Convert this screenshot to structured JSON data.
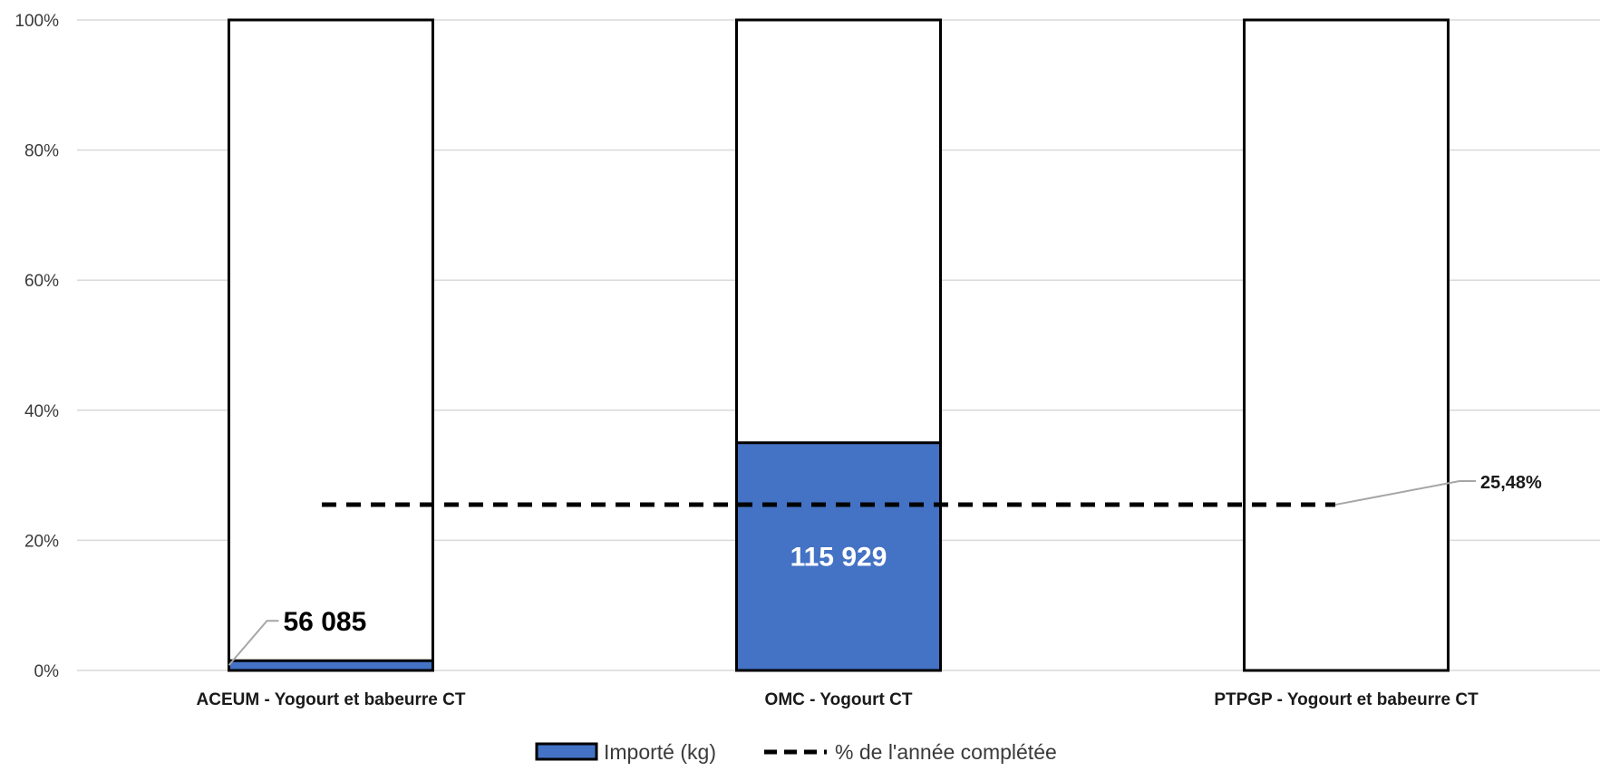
{
  "chart_data": {
    "type": "bar",
    "stacked_percent": true,
    "categories": [
      "ACEUM - Yogourt et babeurre  CT",
      "OMC - Yogourt  CT",
      "PTPGP - Yogourt et babeurre  CT"
    ],
    "series": [
      {
        "name": "Importé (kg)",
        "type": "bar",
        "color": "#4472C4",
        "values_percent": [
          1.5,
          35,
          0
        ],
        "data_labels": [
          "56 085",
          "115 929",
          ""
        ]
      },
      {
        "name": "% de l'année complétée",
        "type": "line",
        "style": "dashed",
        "color": "#000000",
        "value_percent": 25.48,
        "data_label": "25,48%"
      }
    ],
    "yticks": [
      "0%",
      "20%",
      "40%",
      "60%",
      "80%",
      "100%"
    ],
    "ylim": [
      0,
      100
    ],
    "grid": true,
    "legend_position": "bottom"
  }
}
